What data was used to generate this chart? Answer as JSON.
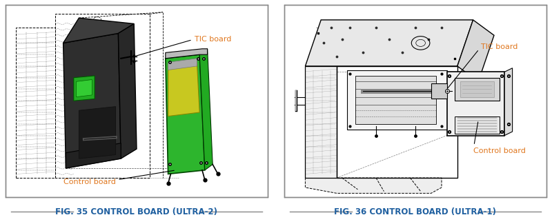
{
  "fig_width": 8.0,
  "fig_height": 3.25,
  "dpi": 100,
  "bg_color": "#ffffff",
  "caption_color": "#2060a0",
  "label_color": "#e07820",
  "border_color": "#888888",
  "left_caption": "FIG. 35 CONTROL BOARD (ULTRA-2)",
  "right_caption": "FIG. 36 CONTROL BOARD (ULTRA-1)",
  "caption_fontsize": 8.5,
  "label_fontsize": 8.0
}
